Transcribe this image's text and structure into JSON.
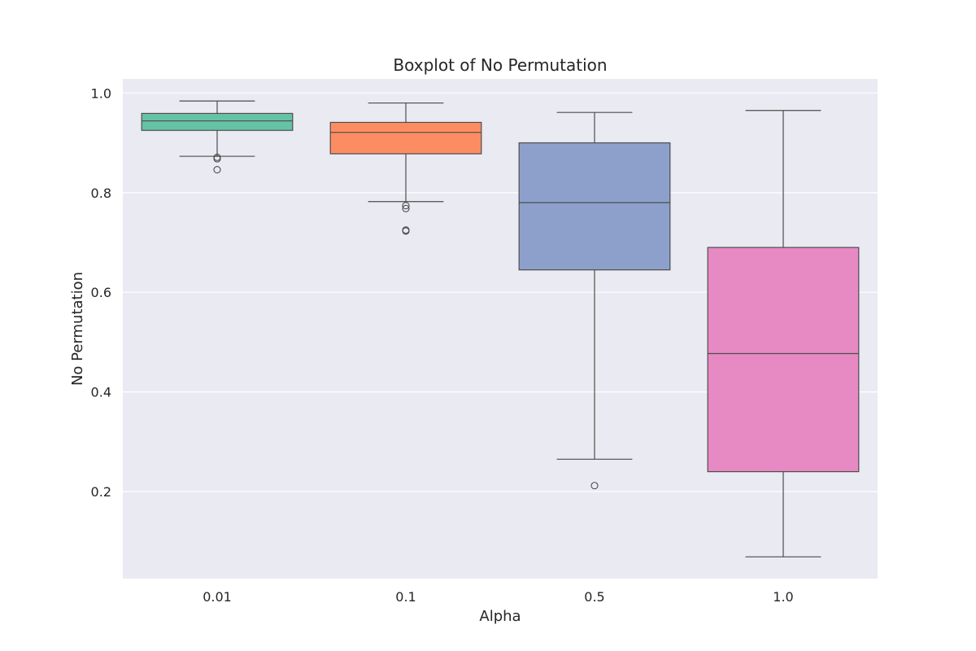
{
  "chart_data": {
    "type": "boxplot",
    "title": "Boxplot of No Permutation",
    "xlabel": "Alpha",
    "ylabel": "No Permutation",
    "ylim": [
      0.03,
      1.03
    ],
    "yticks": [
      0.2,
      0.4,
      0.6,
      0.8,
      1.0
    ],
    "ytick_labels": [
      "0.2",
      "0.4",
      "0.6",
      "0.8",
      "1.0"
    ],
    "grid": true,
    "categories": [
      "0.01",
      "0.1",
      "0.5",
      "1.0"
    ],
    "boxes": [
      {
        "category": "0.01",
        "whisker_low": 0.873,
        "q1": 0.925,
        "median": 0.944,
        "q3": 0.959,
        "whisker_high": 0.984,
        "outliers": [
          0.871,
          0.868,
          0.846
        ],
        "color": "#66c2a5"
      },
      {
        "category": "0.1",
        "whisker_low": 0.782,
        "q1": 0.878,
        "median": 0.921,
        "q3": 0.941,
        "whisker_high": 0.98,
        "outliers": [
          0.774,
          0.768,
          0.725,
          0.723
        ],
        "color": "#fc8d62"
      },
      {
        "category": "0.5",
        "whisker_low": 0.265,
        "q1": 0.645,
        "median": 0.78,
        "q3": 0.9,
        "whisker_high": 0.961,
        "outliers": [
          0.212
        ],
        "color": "#8da0cb"
      },
      {
        "category": "1.0",
        "whisker_low": 0.069,
        "q1": 0.24,
        "median": 0.477,
        "q3": 0.69,
        "whisker_high": 0.965,
        "outliers": [],
        "color": "#e78ac3"
      }
    ]
  }
}
